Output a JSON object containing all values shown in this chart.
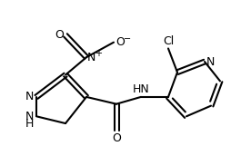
{
  "bg_color": "#ffffff",
  "line_color": "#000000",
  "bond_lw": 1.5,
  "font_size": 9,
  "figsize": [
    2.54,
    1.61
  ],
  "dpi": 100,
  "xlim": [
    0,
    254
  ],
  "ylim": [
    0,
    161
  ]
}
